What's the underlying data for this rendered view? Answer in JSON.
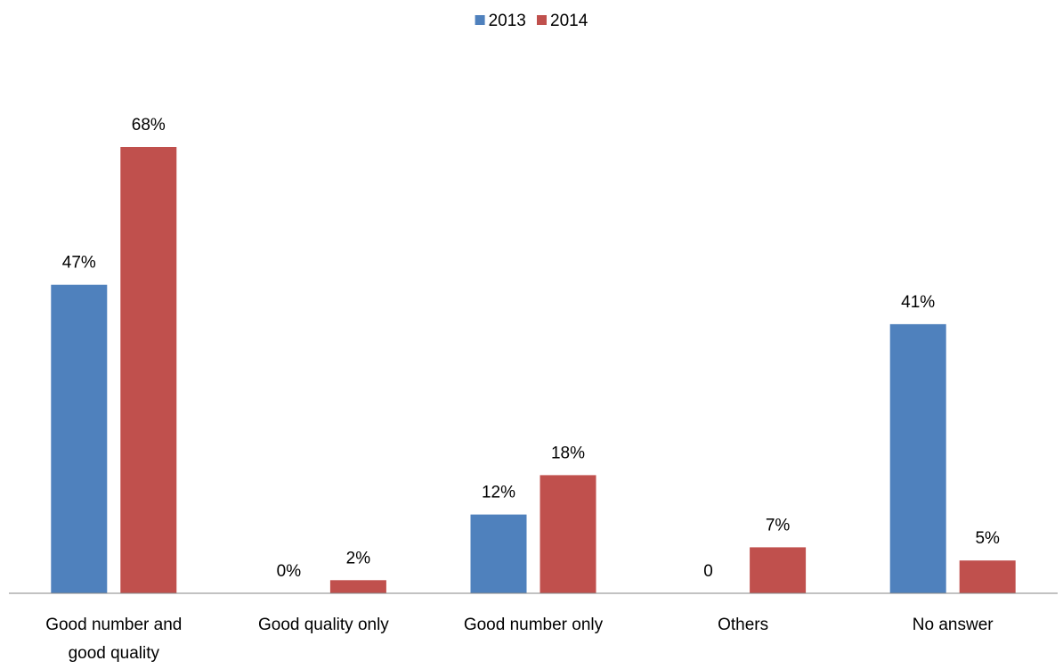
{
  "chart_data": {
    "type": "bar",
    "categories": [
      [
        "Good number and",
        "good quality"
      ],
      [
        "Good quality only"
      ],
      [
        "Good number only"
      ],
      [
        "Others"
      ],
      [
        "No answer"
      ]
    ],
    "series": [
      {
        "name": "2013",
        "color": "#4F81BD",
        "values": [
          47,
          0,
          12,
          0,
          41
        ],
        "labels": [
          "47%",
          "0%",
          "12%",
          "0",
          "41%"
        ]
      },
      {
        "name": "2014",
        "color": "#C0504D",
        "values": [
          68,
          2,
          18,
          7,
          5
        ],
        "labels": [
          "68%",
          "2%",
          "18%",
          "7%",
          "5%"
        ]
      }
    ],
    "ylim": [
      0,
      68
    ],
    "legend_position": "top-center",
    "grid": false
  }
}
